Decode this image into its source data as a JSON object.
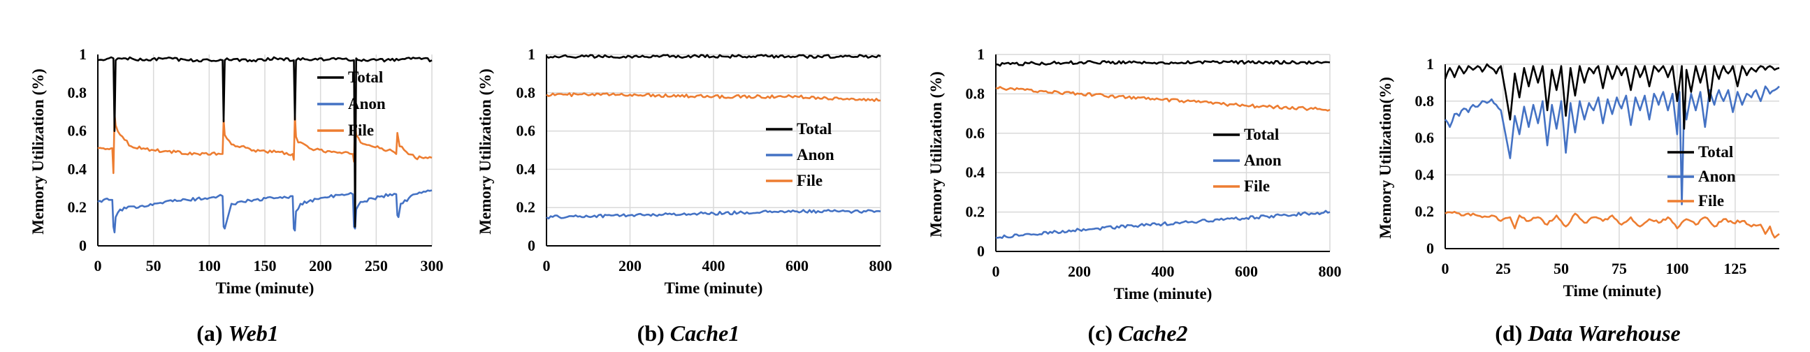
{
  "chart_data": [
    {
      "type": "line",
      "caption_prefix": "(a)",
      "caption_name": "Web1",
      "xlabel": "Time (minute)",
      "ylabel": "Memory Utilization (%)",
      "xlim": [
        0,
        300
      ],
      "ylim": [
        0,
        1
      ],
      "xticks": [
        0,
        50,
        100,
        150,
        200,
        250,
        300
      ],
      "yticks": [
        0,
        0.2,
        0.4,
        0.6,
        0.8,
        1
      ],
      "grid": "vertical",
      "legend": "right",
      "colors": {
        "Total": "#000000",
        "Anon": "#4472C4",
        "File": "#ED7D31"
      },
      "series": [
        {
          "name": "Total",
          "x": [
            0,
            5,
            10,
            14,
            15,
            16,
            18,
            25,
            40,
            60,
            80,
            100,
            112,
            113,
            114,
            116,
            120,
            140,
            160,
            176,
            177,
            178,
            180,
            190,
            210,
            225,
            230,
            231,
            232,
            235,
            250,
            270,
            285,
            300
          ],
          "values": [
            0.97,
            0.97,
            0.98,
            0.98,
            0.6,
            0.97,
            0.98,
            0.98,
            0.97,
            0.98,
            0.97,
            0.97,
            0.97,
            0.65,
            0.97,
            0.98,
            0.97,
            0.97,
            0.98,
            0.97,
            0.66,
            0.97,
            0.98,
            0.97,
            0.98,
            0.97,
            0.97,
            0.1,
            0.98,
            0.97,
            0.97,
            0.97,
            0.98,
            0.97
          ]
        },
        {
          "name": "Anon",
          "x": [
            0,
            5,
            10,
            13,
            14,
            15,
            16,
            20,
            40,
            60,
            80,
            100,
            112,
            113,
            114,
            120,
            140,
            160,
            175,
            176,
            177,
            178,
            182,
            200,
            225,
            229,
            230,
            231,
            232,
            236,
            255,
            268,
            269,
            270,
            272,
            285,
            300
          ],
          "values": [
            0.23,
            0.24,
            0.24,
            0.24,
            0.1,
            0.07,
            0.15,
            0.19,
            0.21,
            0.23,
            0.24,
            0.25,
            0.26,
            0.1,
            0.09,
            0.22,
            0.24,
            0.25,
            0.26,
            0.09,
            0.08,
            0.18,
            0.22,
            0.25,
            0.27,
            0.27,
            0.1,
            0.09,
            0.19,
            0.23,
            0.26,
            0.27,
            0.16,
            0.15,
            0.22,
            0.27,
            0.29
          ]
        },
        {
          "name": "File",
          "x": [
            0,
            5,
            12,
            13,
            14,
            15,
            16,
            20,
            30,
            50,
            70,
            90,
            110,
            112,
            113,
            114,
            116,
            120,
            140,
            160,
            175,
            176,
            177,
            178,
            180,
            190,
            210,
            228,
            229,
            230,
            231,
            232,
            236,
            255,
            266,
            268,
            269,
            271,
            285,
            300
          ],
          "values": [
            0.51,
            0.51,
            0.51,
            0.51,
            0.38,
            0.69,
            0.63,
            0.58,
            0.52,
            0.5,
            0.49,
            0.48,
            0.48,
            0.48,
            0.66,
            0.58,
            0.56,
            0.53,
            0.5,
            0.49,
            0.48,
            0.45,
            0.68,
            0.57,
            0.54,
            0.51,
            0.49,
            0.48,
            0.48,
            0.44,
            0.66,
            0.58,
            0.54,
            0.51,
            0.49,
            0.48,
            0.59,
            0.52,
            0.46,
            0.46
          ]
        }
      ]
    },
    {
      "type": "line",
      "caption_prefix": "(b)",
      "caption_name": "Cache1",
      "xlabel": "Time (minute)",
      "ylabel": "Memory Utilization (%)",
      "xlim": [
        0,
        800
      ],
      "ylim": [
        0,
        1
      ],
      "xticks": [
        0,
        200,
        400,
        600,
        800
      ],
      "yticks": [
        0,
        0.2,
        0.4,
        0.6,
        0.8,
        1
      ],
      "grid": "both",
      "legend": "right",
      "colors": {
        "Total": "#000000",
        "Anon": "#4472C4",
        "File": "#ED7D31"
      },
      "series": [
        {
          "name": "Total",
          "x": [
            0,
            200,
            400,
            600,
            800
          ],
          "values": [
            0.99,
            0.99,
            0.99,
            0.99,
            0.99
          ]
        },
        {
          "name": "Anon",
          "x": [
            0,
            200,
            400,
            600,
            800
          ],
          "values": [
            0.15,
            0.16,
            0.17,
            0.18,
            0.18
          ]
        },
        {
          "name": "File",
          "x": [
            0,
            200,
            400,
            600,
            800
          ],
          "values": [
            0.79,
            0.79,
            0.78,
            0.78,
            0.76
          ]
        }
      ]
    },
    {
      "type": "line",
      "caption_prefix": "(c)",
      "caption_name": "Cache2",
      "xlabel": "Time (minute)",
      "ylabel": "Memory Utilization (%)",
      "xlim": [
        0,
        800
      ],
      "ylim": [
        0,
        1
      ],
      "xticks": [
        0,
        200,
        400,
        600,
        800
      ],
      "yticks": [
        0,
        0.2,
        0.4,
        0.6,
        0.8,
        1
      ],
      "grid": "both",
      "legend": "right",
      "colors": {
        "Total": "#000000",
        "Anon": "#4472C4",
        "File": "#ED7D31"
      },
      "series": [
        {
          "name": "Total",
          "x": [
            0,
            200,
            400,
            600,
            800
          ],
          "values": [
            0.95,
            0.96,
            0.96,
            0.96,
            0.96
          ]
        },
        {
          "name": "Anon",
          "x": [
            0,
            200,
            400,
            600,
            800
          ],
          "values": [
            0.07,
            0.11,
            0.14,
            0.17,
            0.2
          ]
        },
        {
          "name": "File",
          "x": [
            0,
            200,
            400,
            600,
            800
          ],
          "values": [
            0.83,
            0.8,
            0.77,
            0.74,
            0.72
          ]
        }
      ]
    },
    {
      "type": "line",
      "caption_prefix": "(d)",
      "caption_name": "Data Warehouse",
      "xlabel": "Time (minute)",
      "ylabel": "Memory Utilization(%)",
      "xlim": [
        0,
        144
      ],
      "ylim": [
        0,
        1
      ],
      "xticks": [
        0,
        25,
        50,
        75,
        100,
        125
      ],
      "yticks": [
        0,
        0.2,
        0.4,
        0.6,
        0.8,
        1
      ],
      "grid": "both",
      "legend": "right",
      "colors": {
        "Total": "#000000",
        "Anon": "#4472C4",
        "File": "#ED7D31"
      },
      "series": [
        {
          "name": "Total",
          "x": [
            0,
            2,
            4,
            6,
            8,
            10,
            12,
            14,
            16,
            18,
            20,
            22,
            24,
            26,
            28,
            30,
            32,
            34,
            36,
            38,
            40,
            42,
            44,
            46,
            48,
            50,
            52,
            54,
            56,
            58,
            60,
            62,
            64,
            66,
            68,
            70,
            72,
            74,
            76,
            78,
            80,
            82,
            84,
            86,
            88,
            90,
            92,
            94,
            96,
            98,
            100,
            102,
            103,
            104,
            106,
            108,
            110,
            112,
            114,
            116,
            118,
            120,
            122,
            124,
            126,
            128,
            130,
            132,
            134,
            136,
            138,
            140,
            142,
            144
          ],
          "values": [
            0.92,
            0.98,
            0.93,
            0.99,
            0.95,
            0.99,
            0.97,
            0.99,
            0.96,
            1.0,
            0.98,
            0.95,
            0.99,
            0.85,
            0.7,
            0.95,
            0.82,
            0.98,
            0.88,
            0.99,
            0.9,
            0.99,
            0.75,
            0.97,
            0.86,
            0.99,
            0.72,
            0.98,
            0.83,
            0.99,
            0.9,
            0.98,
            0.95,
            0.99,
            0.87,
            0.99,
            0.92,
            0.99,
            0.94,
            0.98,
            0.86,
            0.99,
            0.93,
            0.99,
            0.88,
            0.99,
            0.96,
            0.99,
            0.93,
            0.99,
            0.8,
            0.99,
            0.65,
            0.97,
            0.85,
            0.99,
            0.9,
            0.99,
            0.8,
            0.99,
            0.92,
            0.99,
            0.95,
            0.99,
            0.88,
            0.99,
            0.94,
            0.98,
            0.96,
            0.99,
            0.97,
            0.99,
            0.97,
            0.98
          ]
        },
        {
          "name": "Anon",
          "x": [
            0,
            2,
            4,
            6,
            8,
            10,
            12,
            14,
            16,
            18,
            20,
            22,
            24,
            26,
            28,
            30,
            32,
            34,
            36,
            38,
            40,
            42,
            44,
            46,
            48,
            50,
            52,
            54,
            56,
            58,
            60,
            62,
            64,
            66,
            68,
            70,
            72,
            74,
            76,
            78,
            80,
            82,
            84,
            86,
            88,
            90,
            92,
            94,
            96,
            98,
            100,
            101,
            102,
            103,
            104,
            106,
            108,
            110,
            112,
            114,
            116,
            118,
            120,
            122,
            124,
            126,
            128,
            130,
            132,
            134,
            136,
            138,
            140,
            142,
            144
          ],
          "values": [
            0.7,
            0.66,
            0.73,
            0.72,
            0.76,
            0.74,
            0.78,
            0.77,
            0.8,
            0.79,
            0.81,
            0.78,
            0.75,
            0.62,
            0.49,
            0.72,
            0.62,
            0.77,
            0.66,
            0.78,
            0.68,
            0.8,
            0.56,
            0.78,
            0.65,
            0.8,
            0.52,
            0.79,
            0.63,
            0.8,
            0.7,
            0.79,
            0.75,
            0.82,
            0.68,
            0.81,
            0.73,
            0.82,
            0.76,
            0.83,
            0.67,
            0.82,
            0.75,
            0.83,
            0.7,
            0.84,
            0.78,
            0.85,
            0.75,
            0.84,
            0.62,
            0.85,
            0.24,
            0.8,
            0.7,
            0.84,
            0.75,
            0.85,
            0.66,
            0.86,
            0.78,
            0.86,
            0.8,
            0.86,
            0.74,
            0.85,
            0.78,
            0.84,
            0.82,
            0.86,
            0.8,
            0.88,
            0.84,
            0.86,
            0.88
          ]
        },
        {
          "name": "File",
          "x": [
            0,
            4,
            8,
            12,
            16,
            20,
            24,
            28,
            30,
            32,
            36,
            40,
            44,
            48,
            52,
            56,
            60,
            64,
            68,
            72,
            76,
            80,
            84,
            88,
            92,
            96,
            100,
            104,
            108,
            112,
            116,
            120,
            124,
            128,
            132,
            136,
            138,
            140,
            142,
            144
          ],
          "values": [
            0.19,
            0.2,
            0.18,
            0.19,
            0.17,
            0.18,
            0.15,
            0.17,
            0.11,
            0.18,
            0.15,
            0.17,
            0.13,
            0.18,
            0.12,
            0.19,
            0.14,
            0.17,
            0.15,
            0.18,
            0.13,
            0.17,
            0.12,
            0.16,
            0.14,
            0.17,
            0.11,
            0.16,
            0.13,
            0.17,
            0.12,
            0.16,
            0.14,
            0.15,
            0.12,
            0.13,
            0.08,
            0.12,
            0.06,
            0.08
          ]
        }
      ]
    }
  ]
}
